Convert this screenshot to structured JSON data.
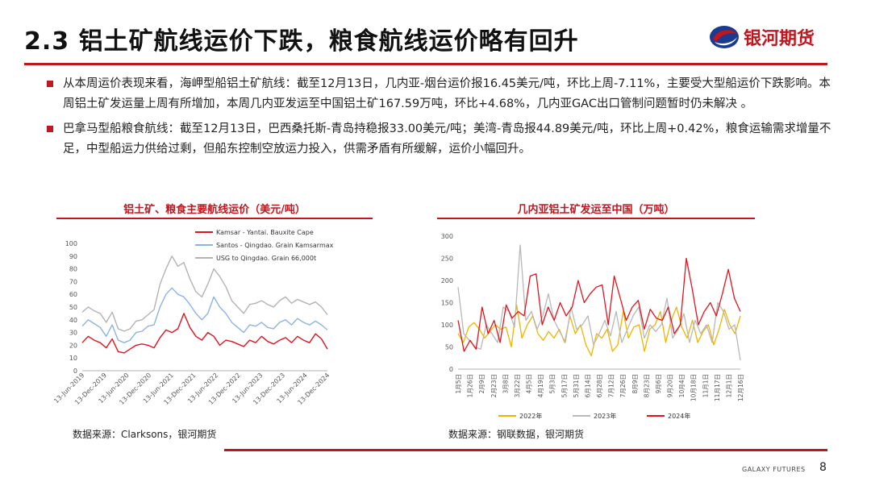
{
  "header": {
    "title": "2.3 铝土矿航线运价下跌，粮食航线运价略有回升",
    "brand": "银河期货"
  },
  "bullets": [
    "从本周运价表现来看，海岬型船铝土矿航线：截至12月13日，几内亚-烟台运价报16.45美元/吨，环比上周-7.11%，主要受大型船运价下跌影响。本周铝土矿发运量上周有所增加，本周几内亚发运至中国铝土矿167.59万吨，环比+4.68%，几内亚GAC出口管制问题暂时仍未解决 。",
    "巴拿马型船粮食航线：截至12月13日，巴西桑托斯-青岛持稳报33.00美元/吨；美湾-青岛报44.89美元/吨，环比上周+0.42%，粮食运输需求增量不足，中型船运力供给过剩，但船东控制空放运力投入，供需矛盾有所缓解，运价小幅回升。"
  ],
  "chart_data": [
    {
      "type": "line",
      "title": "铝土矿、粮食主要航线运价（美元/吨）",
      "x_labels": [
        "13-Jun-2019",
        "13-Dec-2019",
        "13-Jun-2020",
        "13-Dec-2020",
        "13-Jun-2021",
        "13-Dec-2021",
        "13-Jun-2022",
        "13-Dec-2022",
        "13-Jun-2023",
        "13-Dec-2023",
        "13-Jun-2024",
        "13-Dec-2024"
      ],
      "ylim": [
        0,
        100
      ],
      "yticks": [
        0,
        10,
        20,
        30,
        40,
        50,
        60,
        70,
        80,
        90,
        100
      ],
      "legend_position": "top-left",
      "series": [
        {
          "name": "Kamsar - Yantai.  Bauxite Cape",
          "color": "#e0141e",
          "values": [
            22,
            27,
            24,
            22,
            18,
            25,
            15,
            14,
            17,
            20,
            21,
            20,
            18,
            26,
            32,
            30,
            33,
            45,
            34,
            27,
            24,
            30,
            27,
            20,
            24,
            23,
            21,
            19,
            24,
            22,
            27,
            23,
            21,
            24,
            26,
            22,
            27,
            24,
            22,
            29,
            25,
            17
          ]
        },
        {
          "name": "Santos - Qingdao.  Grain Kamsarmax",
          "color": "#8db3e2",
          "values": [
            35,
            40,
            37,
            34,
            27,
            36,
            24,
            22,
            24,
            30,
            31,
            35,
            36,
            50,
            60,
            65,
            60,
            58,
            52,
            45,
            40,
            45,
            58,
            50,
            45,
            38,
            34,
            30,
            36,
            35,
            38,
            34,
            33,
            38,
            40,
            36,
            41,
            38,
            36,
            39,
            36,
            32
          ]
        },
        {
          "name": "USG to Qingdao.  Grain 66,000t",
          "color": "#b3b3b3",
          "values": [
            46,
            50,
            47,
            45,
            38,
            46,
            33,
            31,
            33,
            39,
            40,
            44,
            48,
            68,
            80,
            90,
            82,
            85,
            72,
            62,
            58,
            68,
            80,
            74,
            66,
            55,
            50,
            45,
            52,
            53,
            55,
            52,
            50,
            55,
            58,
            53,
            56,
            54,
            52,
            54,
            50,
            44
          ]
        }
      ],
      "source": "数据来源：Clarksons，银河期货"
    },
    {
      "type": "line",
      "title": "几内亚铝土矿发运至中国（万吨）",
      "x_labels": [
        "1月5日",
        "1月26日",
        "2月9日",
        "2月23日",
        "3月8日",
        "3月22日",
        "4月5日",
        "4月19日",
        "5月3日",
        "5月17日",
        "5月31日",
        "6月14日",
        "6月28日",
        "7月12日",
        "7月26日",
        "8月9日",
        "8月23日",
        "9月6日",
        "9月20日",
        "10月4日",
        "10月18日",
        "11月1日",
        "11月17日",
        "12月1日",
        "12月16日"
      ],
      "ylim": [
        0,
        300
      ],
      "yticks": [
        0,
        50,
        100,
        150,
        200,
        250,
        300
      ],
      "legend_position": "bottom",
      "series": [
        {
          "name": "2022年",
          "color": "#f0b400",
          "values": [
            80,
            60,
            95,
            105,
            90,
            70,
            85,
            100,
            90,
            95,
            50,
            145,
            70,
            100,
            120,
            80,
            65,
            85,
            70,
            90,
            60,
            120,
            80,
            100,
            55,
            30,
            80,
            70,
            90,
            40,
            55,
            130,
            70,
            95,
            100,
            40,
            90,
            100,
            130,
            60,
            110,
            140,
            95,
            70,
            110,
            60,
            85,
            100,
            55,
            90,
            135,
            100,
            80,
            120
          ]
        },
        {
          "name": "2023年",
          "color": "#b8b8b8",
          "values": [
            185,
            80,
            65,
            50,
            45,
            100,
            80,
            60,
            140,
            130,
            95,
            280,
            110,
            130,
            90,
            120,
            170,
            110,
            85,
            60,
            140,
            90,
            100,
            120,
            55,
            80,
            110,
            75,
            130,
            60,
            90,
            120,
            140,
            70,
            100,
            85,
            100,
            160,
            70,
            90,
            125,
            60,
            110,
            80,
            100,
            60,
            150,
            130,
            90,
            100,
            20
          ]
        },
        {
          "name": "2024年",
          "color": "#e0141e",
          "values": [
            110,
            40,
            65,
            45,
            140,
            80,
            110,
            60,
            145,
            115,
            130,
            120,
            210,
            215,
            100,
            140,
            110,
            150,
            120,
            140,
            200,
            150,
            170,
            185,
            190,
            100,
            210,
            160,
            110,
            140,
            155,
            90,
            135,
            115,
            110,
            140,
            80,
            100,
            250,
            180,
            100,
            130,
            150,
            120,
            170,
            225,
            160,
            130
          ]
        }
      ],
      "source": "数据来源：钢联数据，银河期货"
    }
  ],
  "footer": {
    "brand": "GALAXY FUTURES",
    "page": "8"
  }
}
